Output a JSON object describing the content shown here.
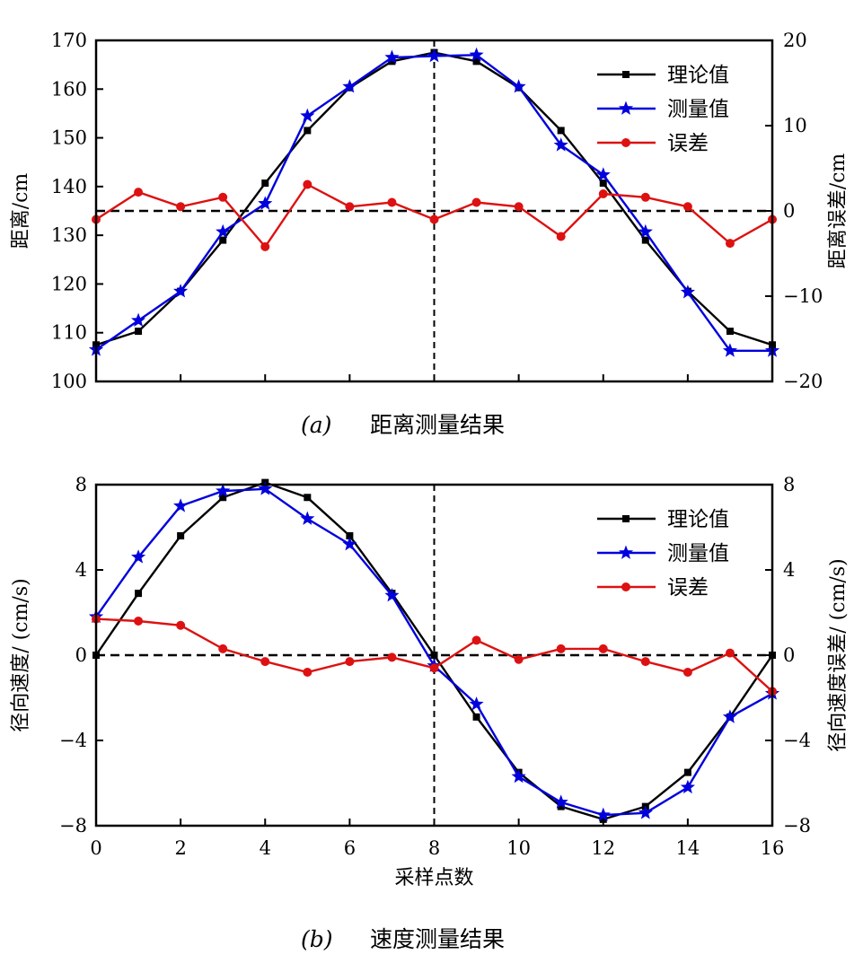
{
  "chart_data": [
    {
      "type": "line",
      "caption": {
        "label": "(a)",
        "text": "距离测量结果"
      },
      "xlabel": "",
      "ylabel": "距离/cm",
      "y2label": "距离误差/cm",
      "x": [
        0,
        1,
        2,
        3,
        4,
        5,
        6,
        7,
        8,
        9,
        10,
        11,
        12,
        13,
        14,
        15,
        16
      ],
      "xlim": [
        0,
        16
      ],
      "ylim": [
        100,
        170
      ],
      "y2lim": [
        -20,
        20
      ],
      "yticks": [
        "100",
        "110",
        "120",
        "130",
        "140",
        "150",
        "160",
        "170"
      ],
      "yticks_values": [
        100,
        110,
        120,
        130,
        140,
        150,
        160,
        170
      ],
      "y2ticks": [
        "−20",
        "−10",
        "0",
        "10",
        "20"
      ],
      "y2ticks_values": [
        -20,
        -10,
        0,
        10,
        20
      ],
      "xticks": [],
      "grid": false,
      "legend": "top-right",
      "vline_x": 8,
      "hline_y2": 0,
      "series": [
        {
          "name": "理论值",
          "axis": "left",
          "color": "#000000",
          "marker": "square",
          "values": [
            107.5,
            110.3,
            118.5,
            129,
            140.7,
            151.5,
            160.3,
            165.7,
            167.5,
            165.7,
            160.3,
            151.5,
            140.7,
            129,
            118.5,
            110.3,
            107.5
          ]
        },
        {
          "name": "测量值",
          "axis": "left",
          "color": "#0000dd",
          "marker": "star",
          "values": [
            106.5,
            112.5,
            118.5,
            130.7,
            136.5,
            154.5,
            160.5,
            166.5,
            166.8,
            167,
            160.5,
            148.5,
            142.4,
            130.7,
            118.3,
            106.3,
            106.3
          ]
        },
        {
          "name": "误差",
          "axis": "right",
          "color": "#dd1111",
          "marker": "circle",
          "values": [
            -1,
            2.2,
            0.5,
            1.6,
            -4.2,
            3.1,
            0.5,
            1,
            -1,
            1,
            0.5,
            -3,
            2,
            1.6,
            0.5,
            -3.8,
            -1
          ]
        }
      ]
    },
    {
      "type": "line",
      "caption": {
        "label": "(b)",
        "text": "速度测量结果"
      },
      "xlabel": "采样点数",
      "ylabel": "径向速度/ (cm/s)",
      "y2label": "径向速度误差/ (cm/s)",
      "x": [
        0,
        1,
        2,
        3,
        4,
        5,
        6,
        7,
        8,
        9,
        10,
        11,
        12,
        13,
        14,
        15,
        16
      ],
      "xlim": [
        0,
        16
      ],
      "ylim": [
        -8,
        8
      ],
      "y2lim": [
        -8,
        8
      ],
      "yticks": [
        "−8",
        "−4",
        "0",
        "4",
        "8"
      ],
      "yticks_values": [
        -8,
        -4,
        0,
        4,
        8
      ],
      "y2ticks": [
        "−8",
        "−4",
        "0",
        "4",
        "8"
      ],
      "y2ticks_values": [
        -8,
        -4,
        0,
        4,
        8
      ],
      "xticks": [
        "0",
        "2",
        "4",
        "6",
        "8",
        "10",
        "12",
        "14",
        "16"
      ],
      "xticks_values": [
        0,
        2,
        4,
        6,
        8,
        10,
        12,
        14,
        16
      ],
      "grid": false,
      "legend": "top-right",
      "vline_x": 8,
      "hline_y2": 0,
      "series": [
        {
          "name": "理论值",
          "axis": "left",
          "color": "#000000",
          "marker": "square",
          "values": [
            0,
            2.9,
            5.6,
            7.4,
            8.1,
            7.4,
            5.6,
            2.9,
            0,
            -2.9,
            -5.5,
            -7.1,
            -7.7,
            -7.1,
            -5.5,
            -2.9,
            0
          ]
        },
        {
          "name": "测量值",
          "axis": "left",
          "color": "#0000dd",
          "marker": "star",
          "values": [
            1.8,
            4.6,
            7,
            7.7,
            7.8,
            6.4,
            5.2,
            2.8,
            -0.5,
            -2.3,
            -5.7,
            -6.9,
            -7.5,
            -7.4,
            -6.2,
            -2.9,
            -1.8
          ]
        },
        {
          "name": "误差",
          "axis": "right",
          "color": "#dd1111",
          "marker": "circle",
          "values": [
            1.7,
            1.6,
            1.4,
            0.3,
            -0.3,
            -0.8,
            -0.3,
            -0.1,
            -0.6,
            0.7,
            -0.2,
            0.3,
            0.3,
            -0.3,
            -0.8,
            0.1,
            -1.7
          ]
        }
      ]
    }
  ]
}
